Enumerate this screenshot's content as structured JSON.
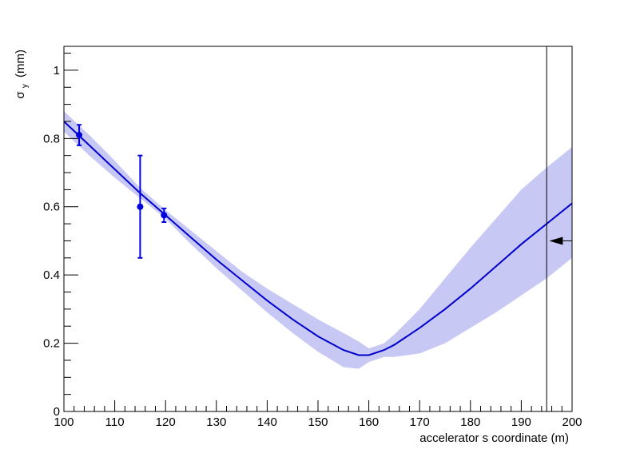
{
  "chart_data": {
    "type": "line",
    "title": "",
    "xlabel": "accelerator s coordinate (m)",
    "ylabel_symbol": "σ",
    "ylabel_subscript": "y",
    "ylabel_unit": "(mm)",
    "xlim": [
      100,
      200
    ],
    "ylim": [
      0,
      1.07
    ],
    "x_ticks": [
      100,
      110,
      120,
      130,
      140,
      150,
      160,
      170,
      180,
      190,
      200
    ],
    "y_ticks": [
      0,
      0.2,
      0.4,
      0.6,
      0.8,
      1
    ],
    "x_tick_labels": [
      "100",
      "110",
      "120",
      "130",
      "140",
      "150",
      "160",
      "170",
      "180",
      "190",
      "200"
    ],
    "y_tick_labels": [
      "0",
      "0.2",
      "0.4",
      "0.6",
      "0.8",
      "1"
    ],
    "grid": false,
    "colors": {
      "line": "#0000cc",
      "band": "#c8c8f5",
      "points": "#0000dd",
      "axes": "#000000"
    },
    "series": [
      {
        "kind": "fit",
        "x": [
          100,
          105,
          110,
          115,
          120,
          125,
          130,
          135,
          140,
          145,
          150,
          155,
          158,
          160,
          163,
          165,
          170,
          175,
          180,
          185,
          190,
          195,
          200
        ],
        "y": [
          0.85,
          0.78,
          0.71,
          0.64,
          0.575,
          0.51,
          0.445,
          0.385,
          0.325,
          0.27,
          0.22,
          0.18,
          0.165,
          0.165,
          0.18,
          0.195,
          0.245,
          0.3,
          0.36,
          0.425,
          0.49,
          0.55,
          0.61
        ],
        "lower": [
          0.82,
          0.75,
          0.685,
          0.625,
          0.565,
          0.49,
          0.42,
          0.355,
          0.29,
          0.23,
          0.175,
          0.13,
          0.125,
          0.145,
          0.16,
          0.16,
          0.17,
          0.2,
          0.245,
          0.29,
          0.34,
          0.39,
          0.45
        ],
        "upper": [
          0.88,
          0.81,
          0.735,
          0.655,
          0.59,
          0.53,
          0.47,
          0.41,
          0.36,
          0.315,
          0.27,
          0.23,
          0.205,
          0.185,
          0.2,
          0.225,
          0.3,
          0.39,
          0.48,
          0.565,
          0.65,
          0.715,
          0.775
        ]
      },
      {
        "kind": "measurements",
        "points": [
          {
            "x": 103.0,
            "y": 0.81,
            "err": 0.03
          },
          {
            "x": 115.0,
            "y": 0.6,
            "err": 0.15
          },
          {
            "x": 119.7,
            "y": 0.575,
            "err": 0.02
          }
        ]
      }
    ],
    "marker_line": {
      "x": 195
    },
    "arrow": {
      "x_from": 200,
      "x_to": 195.5,
      "y": 0.5
    }
  }
}
